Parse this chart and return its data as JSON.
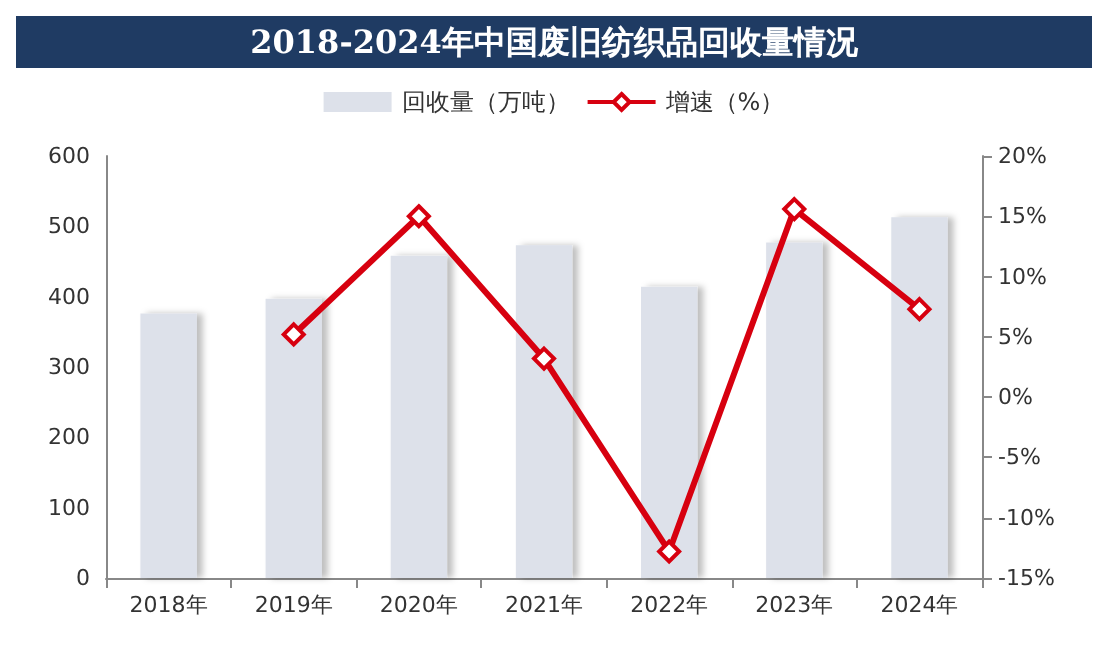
{
  "chart_data": {
    "type": "bar",
    "title": "2018-2024年中国废旧纺织品回收量情况",
    "categories": [
      "2018年",
      "2019年",
      "2020年",
      "2021年",
      "2022年",
      "2023年",
      "2024年"
    ],
    "series": [
      {
        "name": "回收量（万吨）",
        "color": "#dde1ea",
        "values": [
          376,
          397,
          458,
          473,
          414,
          477,
          513
        ]
      },
      {
        "name": "增速（%）",
        "type": "line",
        "axis": "y2",
        "color": "#d7000f",
        "marker": "diamond",
        "values": [
          null,
          5.2,
          15.0,
          3.2,
          -12.8,
          15.6,
          7.3
        ]
      }
    ],
    "ylim": [
      0,
      600
    ],
    "yticks": [
      0,
      100,
      200,
      300,
      400,
      500,
      600
    ],
    "y2lim": [
      -15,
      20
    ],
    "y2ticks": [
      {
        "value": -15,
        "label": "-15%"
      },
      {
        "value": -10,
        "label": "-10%"
      },
      {
        "value": -5,
        "label": "-5%"
      },
      {
        "value": 0,
        "label": "0%"
      },
      {
        "value": 5,
        "label": "5%"
      },
      {
        "value": 10,
        "label": "10%"
      },
      {
        "value": 15,
        "label": "15%"
      },
      {
        "value": 20,
        "label": "20%"
      }
    ],
    "grid": false,
    "legend": "top"
  }
}
